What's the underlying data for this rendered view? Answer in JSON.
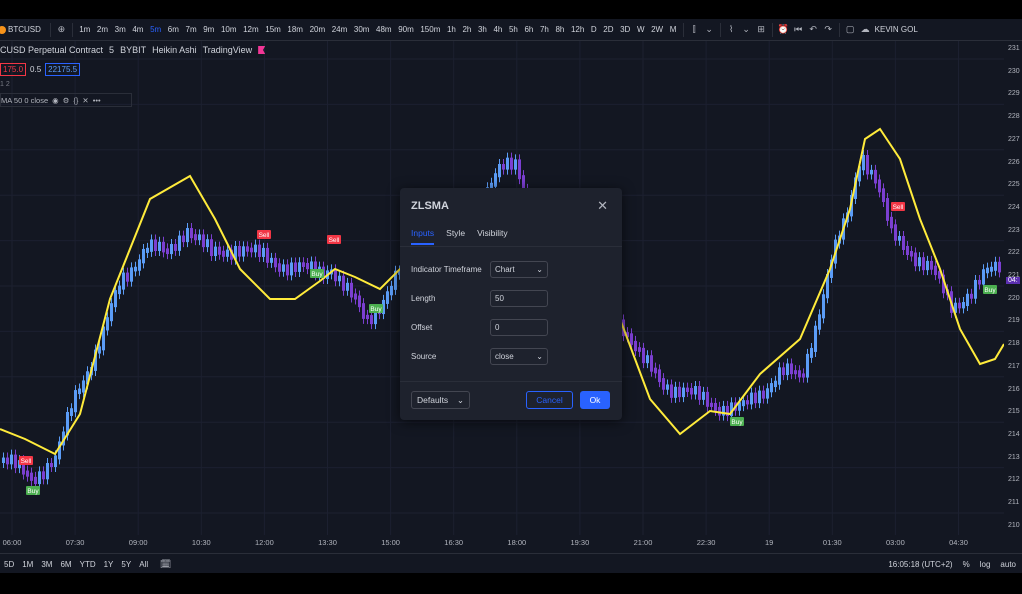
{
  "toolbar": {
    "symbol": "BTCUSD",
    "add_icon": "plus-circle-icon",
    "timeframes": [
      "1m",
      "2m",
      "3m",
      "4m",
      "5m",
      "6m",
      "7m",
      "9m",
      "10m",
      "12m",
      "15m",
      "18m",
      "20m",
      "24m",
      "30m",
      "48m",
      "90m",
      "150m",
      "1h",
      "2h",
      "3h",
      "4h",
      "5h",
      "6h",
      "7h",
      "8h",
      "12h",
      "D",
      "2D",
      "3D",
      "W",
      "2W",
      "M"
    ],
    "active_timeframe": "5m",
    "user": "KEVIN GOL"
  },
  "legend": {
    "title": "CUSD Perpetual Contract",
    "interval": "5",
    "exchange": "BYBIT",
    "chart_type": "Heikin Ashi",
    "source": "TradingView",
    "bid": "175.0",
    "spread": "0.5",
    "ask": "22175.5",
    "series_count": "1 2",
    "indicator_label": "MA 50 0 close"
  },
  "price_scale": [
    "231",
    "230",
    "229",
    "228",
    "227",
    "226",
    "225",
    "224",
    "223",
    "222",
    "221",
    "220",
    "219",
    "218",
    "217",
    "216",
    "215",
    "214",
    "213",
    "212",
    "211",
    "210"
  ],
  "price_scale_tag": "04:",
  "time_scale": [
    "06:00",
    "07:30",
    "09:00",
    "10:30",
    "12:00",
    "13:30",
    "15:00",
    "16:30",
    "18:00",
    "19:30",
    "21:00",
    "22:30",
    "19",
    "01:30",
    "03:00",
    "04:30"
  ],
  "signals": {
    "sell": "Sell",
    "buy": "Buy"
  },
  "bottom": {
    "ranges": [
      "5D",
      "1M",
      "3M",
      "6M",
      "YTD",
      "1Y",
      "5Y",
      "All"
    ],
    "time": "16:05:18 (UTC+2)",
    "percent": "%",
    "log": "log",
    "auto": "auto"
  },
  "dialog": {
    "title": "ZLSMA",
    "tabs": [
      "Inputs",
      "Style",
      "Visibility"
    ],
    "active_tab": "Inputs",
    "fields": {
      "timeframe_label": "Indicator Timeframe",
      "timeframe_value": "Chart",
      "length_label": "Length",
      "length_value": "50",
      "offset_label": "Offset",
      "offset_value": "0",
      "source_label": "Source",
      "source_value": "close"
    },
    "defaults_label": "Defaults",
    "cancel_label": "Cancel",
    "ok_label": "Ok"
  },
  "colors": {
    "up": "#5b9cf6",
    "down": "#7b3fd1",
    "zlsma": "#ffeb3b",
    "accent": "#2962ff",
    "sell": "#f23645",
    "buy": "#4caf50"
  }
}
